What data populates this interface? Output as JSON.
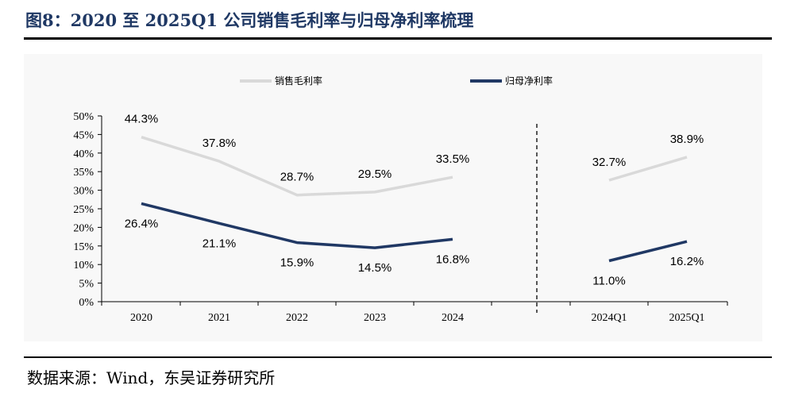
{
  "title": "图8：2020 至 2025Q1 公司销售毛利率与归母净利率梳理",
  "source": "数据来源：Wind，东吴证券研究所",
  "chart_data": {
    "type": "line",
    "categories": [
      "2020",
      "2021",
      "2022",
      "2023",
      "2024",
      "2024Q1",
      "2025Q1"
    ],
    "y_ticks": [
      "0%",
      "5%",
      "10%",
      "15%",
      "20%",
      "25%",
      "30%",
      "35%",
      "40%",
      "45%",
      "50%"
    ],
    "ylim": [
      0,
      50
    ],
    "legend_position": "top",
    "separator_between": [
      "2024",
      "2024Q1"
    ],
    "segments": [
      {
        "from": 0,
        "to": 4
      },
      {
        "from": 5,
        "to": 6
      }
    ],
    "series": [
      {
        "name": "销售毛利率",
        "color": "#d9d9d9",
        "values": [
          44.3,
          37.8,
          28.7,
          29.5,
          33.5,
          32.7,
          38.9
        ],
        "labels": [
          "44.3%",
          "37.8%",
          "28.7%",
          "29.5%",
          "33.5%",
          "32.7%",
          "38.9%"
        ]
      },
      {
        "name": "归母净利率",
        "color": "#203864",
        "values": [
          26.4,
          21.1,
          15.9,
          14.5,
          16.8,
          11.0,
          16.2
        ],
        "labels": [
          "26.4%",
          "21.1%",
          "15.9%",
          "14.5%",
          "16.8%",
          "11.0%",
          "16.2%"
        ]
      }
    ]
  }
}
